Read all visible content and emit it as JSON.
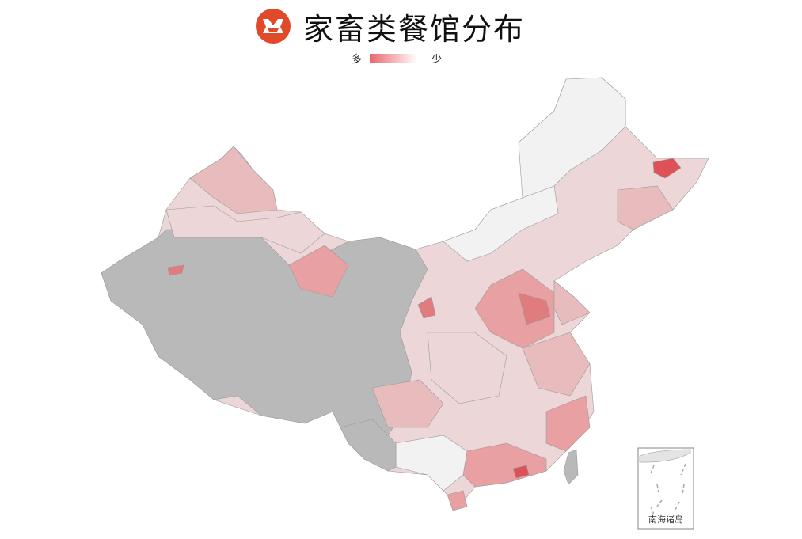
{
  "title": "家畜类餐馆分布",
  "legend": {
    "high_label": "多",
    "low_label": "少",
    "high_color": "#e8676b",
    "low_color": "#ffffff"
  },
  "map": {
    "no_data_color": "#b9b9b9",
    "level_colors": [
      "#f2f2f2",
      "#ecd6d7",
      "#e8bcbd",
      "#e8a0a2",
      "#e07b7e",
      "#de5257"
    ],
    "inset_label": "南海诸岛"
  },
  "logo": {
    "color": "#e04a2a"
  }
}
